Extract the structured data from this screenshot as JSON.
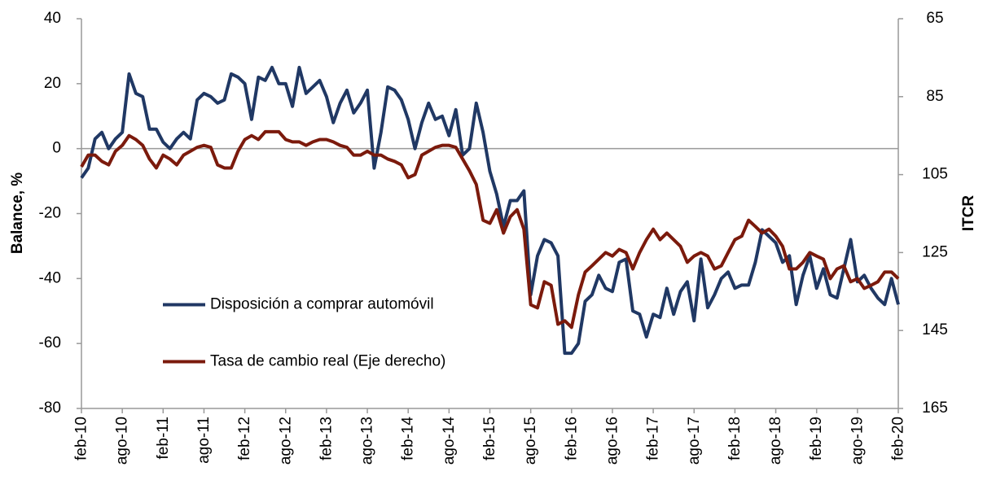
{
  "chart_data": {
    "type": "line",
    "y_label": "Balance, %",
    "y2_label": "ITCR",
    "categories": [
      "feb-10",
      null,
      null,
      null,
      null,
      null,
      "ago-10",
      null,
      null,
      null,
      null,
      null,
      "feb-11",
      null,
      null,
      null,
      null,
      null,
      "ago-11",
      null,
      null,
      null,
      null,
      null,
      "feb-12",
      null,
      null,
      null,
      null,
      null,
      "ago-12",
      null,
      null,
      null,
      null,
      null,
      "feb-13",
      null,
      null,
      null,
      null,
      null,
      "ago-13",
      null,
      null,
      null,
      null,
      null,
      "feb-14",
      null,
      null,
      null,
      null,
      null,
      "ago-14",
      null,
      null,
      null,
      null,
      null,
      "feb-15",
      null,
      null,
      null,
      null,
      null,
      "ago-15",
      null,
      null,
      null,
      null,
      null,
      "feb-16",
      null,
      null,
      null,
      null,
      null,
      "ago-16",
      null,
      null,
      null,
      null,
      null,
      "feb-17",
      null,
      null,
      null,
      null,
      null,
      "ago-17",
      null,
      null,
      null,
      null,
      null,
      "feb-18",
      null,
      null,
      null,
      null,
      null,
      "ago-18",
      null,
      null,
      null,
      null,
      null,
      "feb-19",
      null,
      null,
      null,
      null,
      null,
      "ago-19",
      null,
      null,
      null,
      null,
      null,
      "feb-20"
    ],
    "series": [
      {
        "name": "Disposición a comprar automóvil",
        "color": "#203864",
        "values": [
          -9,
          -6,
          3,
          5,
          0,
          3,
          5,
          23,
          17,
          16,
          6,
          6,
          2,
          0,
          3,
          5,
          3,
          15,
          17,
          16,
          14,
          15,
          23,
          22,
          20,
          9,
          22,
          21,
          25,
          20,
          20,
          13,
          25,
          17,
          19,
          21,
          16,
          8,
          14,
          18,
          11,
          14,
          18,
          -6,
          5,
          19,
          18,
          15,
          9,
          0,
          8,
          14,
          9,
          10,
          4,
          12,
          -2,
          0,
          14,
          5,
          -7,
          -14,
          -24,
          -16,
          -16,
          -13,
          -45,
          -33,
          -28,
          -29,
          -33,
          -63,
          -63,
          -60,
          -47,
          -45,
          -39,
          -43,
          -44,
          -35,
          -34,
          -50,
          -51,
          -58,
          -51,
          -52,
          -43,
          -51,
          -44,
          -41,
          -53,
          -34,
          -49,
          -45,
          -40,
          -38,
          -43,
          -42,
          -42,
          -35,
          -25,
          -27,
          -29,
          -35,
          -33,
          -48,
          -39,
          -33,
          -43,
          -37,
          -45,
          -46,
          -37,
          -28,
          -41,
          -39,
          -43,
          -46,
          -48,
          -40,
          -48
        ]
      },
      {
        "name": "Tasa de cambio real (Eje derecho)",
        "color": "#7b1a0c",
        "axis": "y2",
        "values": [
          103,
          100,
          100,
          101.6,
          102.5,
          99,
          97.5,
          95,
          96,
          97.5,
          101,
          103.3,
          100,
          101,
          102.5,
          100,
          99,
          98,
          97.5,
          98,
          102.5,
          103.3,
          103.3,
          99,
          96,
          95,
          96,
          94,
          94,
          94,
          96,
          96.6,
          96.6,
          97.5,
          96.6,
          96,
          96,
          96.6,
          97.5,
          98,
          100,
          100,
          99,
          100,
          100,
          101,
          101.6,
          102.5,
          105.8,
          105,
          100,
          99,
          98,
          97.5,
          97.5,
          98,
          101,
          104,
          107.5,
          116.7,
          117.5,
          114,
          120,
          115.8,
          114,
          119,
          138.4,
          139.2,
          132.5,
          133.4,
          143.4,
          142.5,
          144.2,
          135.9,
          130,
          128.4,
          126.7,
          125,
          125.9,
          124.2,
          125,
          129.2,
          125,
          121.7,
          119,
          121.7,
          120,
          121.7,
          123.4,
          127.5,
          125.9,
          125,
          125.9,
          129.2,
          128.4,
          125,
          121.7,
          120.8,
          116.7,
          118.3,
          120,
          119,
          120.8,
          123.4,
          129.2,
          129.2,
          127.5,
          125,
          125.9,
          126.7,
          131.7,
          129.2,
          128.4,
          132.5,
          131.7,
          134.2,
          133.4,
          132.5,
          130,
          130,
          131.7
        ]
      }
    ],
    "ylim": [
      -80,
      40
    ],
    "yticks": [
      -80,
      -60,
      -40,
      -20,
      0,
      20,
      40
    ],
    "y2lim": [
      165,
      65
    ],
    "y2ticks": [
      65,
      85,
      105,
      125,
      145,
      165
    ],
    "legend": "center-left"
  }
}
